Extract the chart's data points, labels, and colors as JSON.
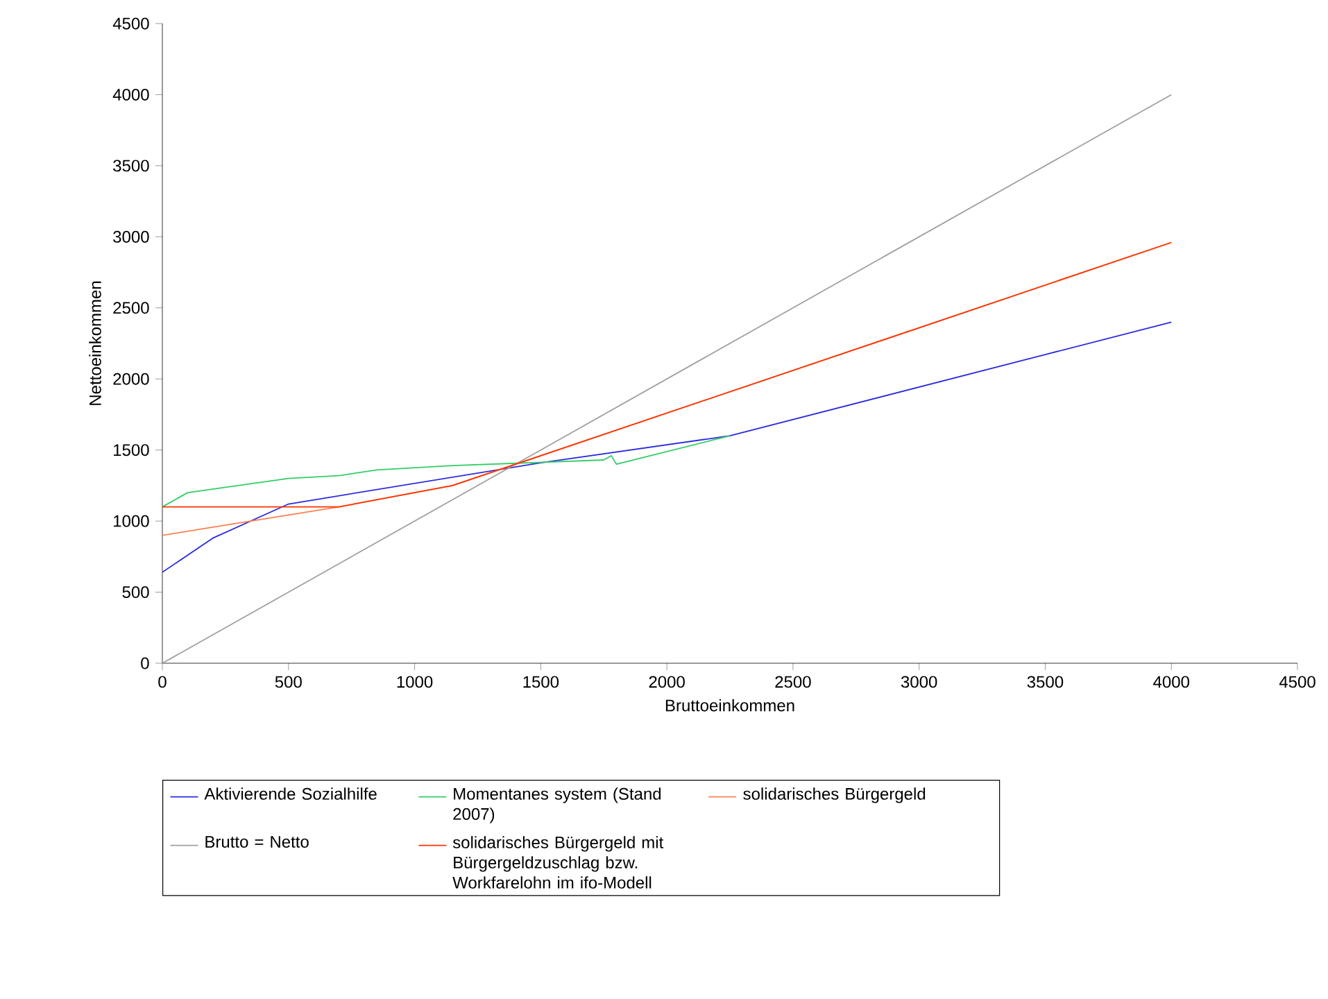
{
  "chart_data": {
    "type": "line",
    "xlabel": "Bruttoeinkommen",
    "ylabel": "Nettoeinkommen",
    "xlim": [
      0,
      4500
    ],
    "ylim": [
      0,
      4500
    ],
    "xticks": [
      0,
      500,
      1000,
      1500,
      2000,
      2500,
      3000,
      3500,
      4000,
      4500
    ],
    "yticks": [
      0,
      500,
      1000,
      1500,
      2000,
      2500,
      3000,
      3500,
      4000,
      4500
    ],
    "grid": false,
    "legend": "bottom",
    "marker": "none",
    "line_style": "solid",
    "series": [
      {
        "name": "Aktivierende Sozialhilfe",
        "color": "#2a2ae0",
        "x": [
          0,
          200,
          500,
          1500,
          2250,
          4000
        ],
        "values": [
          640,
          880,
          1120,
          1410,
          1600,
          2400
        ]
      },
      {
        "name": "Momentanes system (Stand 2007)",
        "color": "#33cc66",
        "x": [
          0,
          100,
          500,
          700,
          850,
          1150,
          1750,
          1780,
          1800,
          2250
        ],
        "values": [
          1100,
          1200,
          1300,
          1320,
          1360,
          1390,
          1430,
          1460,
          1400,
          1600
        ]
      },
      {
        "name": "solidarisches Bürgergeld",
        "color": "#ff8050",
        "x": [
          0,
          700,
          1150,
          4000
        ],
        "values": [
          900,
          1100,
          1250,
          2960
        ]
      },
      {
        "name": "Brutto = Netto",
        "color": "#a0a0a0",
        "x": [
          0,
          4000
        ],
        "values": [
          0,
          4000
        ]
      },
      {
        "name": "solidarisches Bürgergeld mit Bürgergeldzuschlag bzw. Workfarelohn im ifo-Modell",
        "color": "#ff3300",
        "x": [
          0,
          700,
          1150,
          4000
        ],
        "values": [
          1100,
          1100,
          1250,
          2960
        ]
      }
    ]
  }
}
